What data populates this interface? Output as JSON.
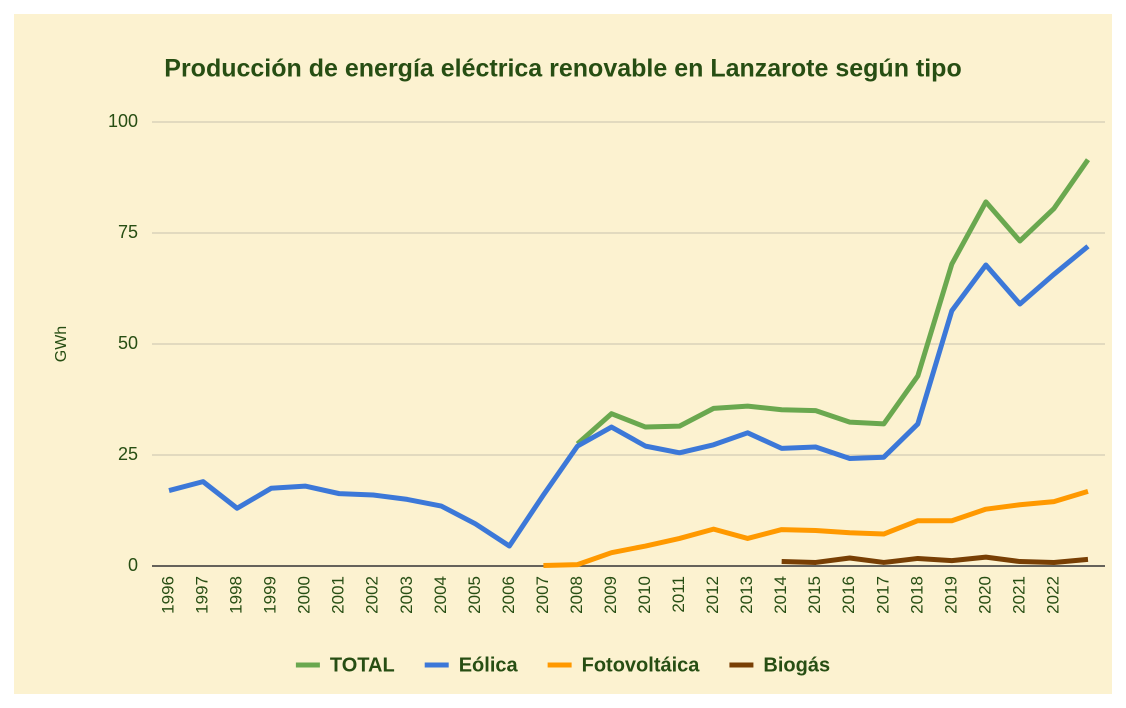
{
  "chart_data": {
    "type": "line",
    "title": "Producción de energía eléctrica renovable en Lanzarote según tipo",
    "y_label": "GWh",
    "categories": [
      "1996",
      "1997",
      "1998",
      "1999",
      "2000",
      "2001",
      "2002",
      "2003",
      "2004",
      "2005",
      "2006",
      "2007",
      "2008",
      "2009",
      "2010",
      "2011",
      "2012",
      "2013",
      "2014",
      "2015",
      "2016",
      "2017",
      "2018",
      "2019",
      "2020",
      "2021",
      "2022",
      null
    ],
    "series": [
      {
        "name": "TOTAL",
        "color": "#6aa84f",
        "values": [
          null,
          null,
          null,
          null,
          null,
          null,
          null,
          null,
          null,
          null,
          null,
          null,
          27.5,
          34.3,
          31.3,
          31.5,
          35.5,
          36,
          35.2,
          35,
          32.4,
          32,
          42.8,
          68,
          82,
          73.2,
          80.5,
          91.5
        ]
      },
      {
        "name": "Eólica",
        "color": "#3c78d8",
        "values": [
          17,
          19,
          13,
          17.5,
          18,
          16.3,
          16,
          15,
          13.5,
          9.5,
          4.5,
          16,
          27,
          31.3,
          27,
          25.5,
          27.3,
          30,
          26.5,
          26.8,
          24.2,
          24.5,
          32,
          57.5,
          67.8,
          59,
          65.7,
          72
        ]
      },
      {
        "name": "Fotovoltáica",
        "color": "#ff9900",
        "values": [
          null,
          null,
          null,
          null,
          null,
          null,
          null,
          null,
          null,
          null,
          null,
          0.1,
          0.3,
          3,
          4.5,
          6.2,
          8.3,
          6.2,
          8.2,
          8,
          7.5,
          7.2,
          10.2,
          10.2,
          12.8,
          13.8,
          14.5,
          16.8
        ]
      },
      {
        "name": "Biogás",
        "color": "#783f04",
        "values": [
          null,
          null,
          null,
          null,
          null,
          null,
          null,
          null,
          null,
          null,
          null,
          null,
          null,
          null,
          null,
          null,
          null,
          null,
          1,
          0.8,
          1.8,
          0.8,
          1.7,
          1.2,
          2,
          1,
          0.8,
          1.5
        ]
      }
    ],
    "ylim": [
      0,
      100
    ],
    "yticks": [
      0,
      25,
      50,
      75,
      100
    ],
    "grid": true,
    "legend": "bottom"
  }
}
